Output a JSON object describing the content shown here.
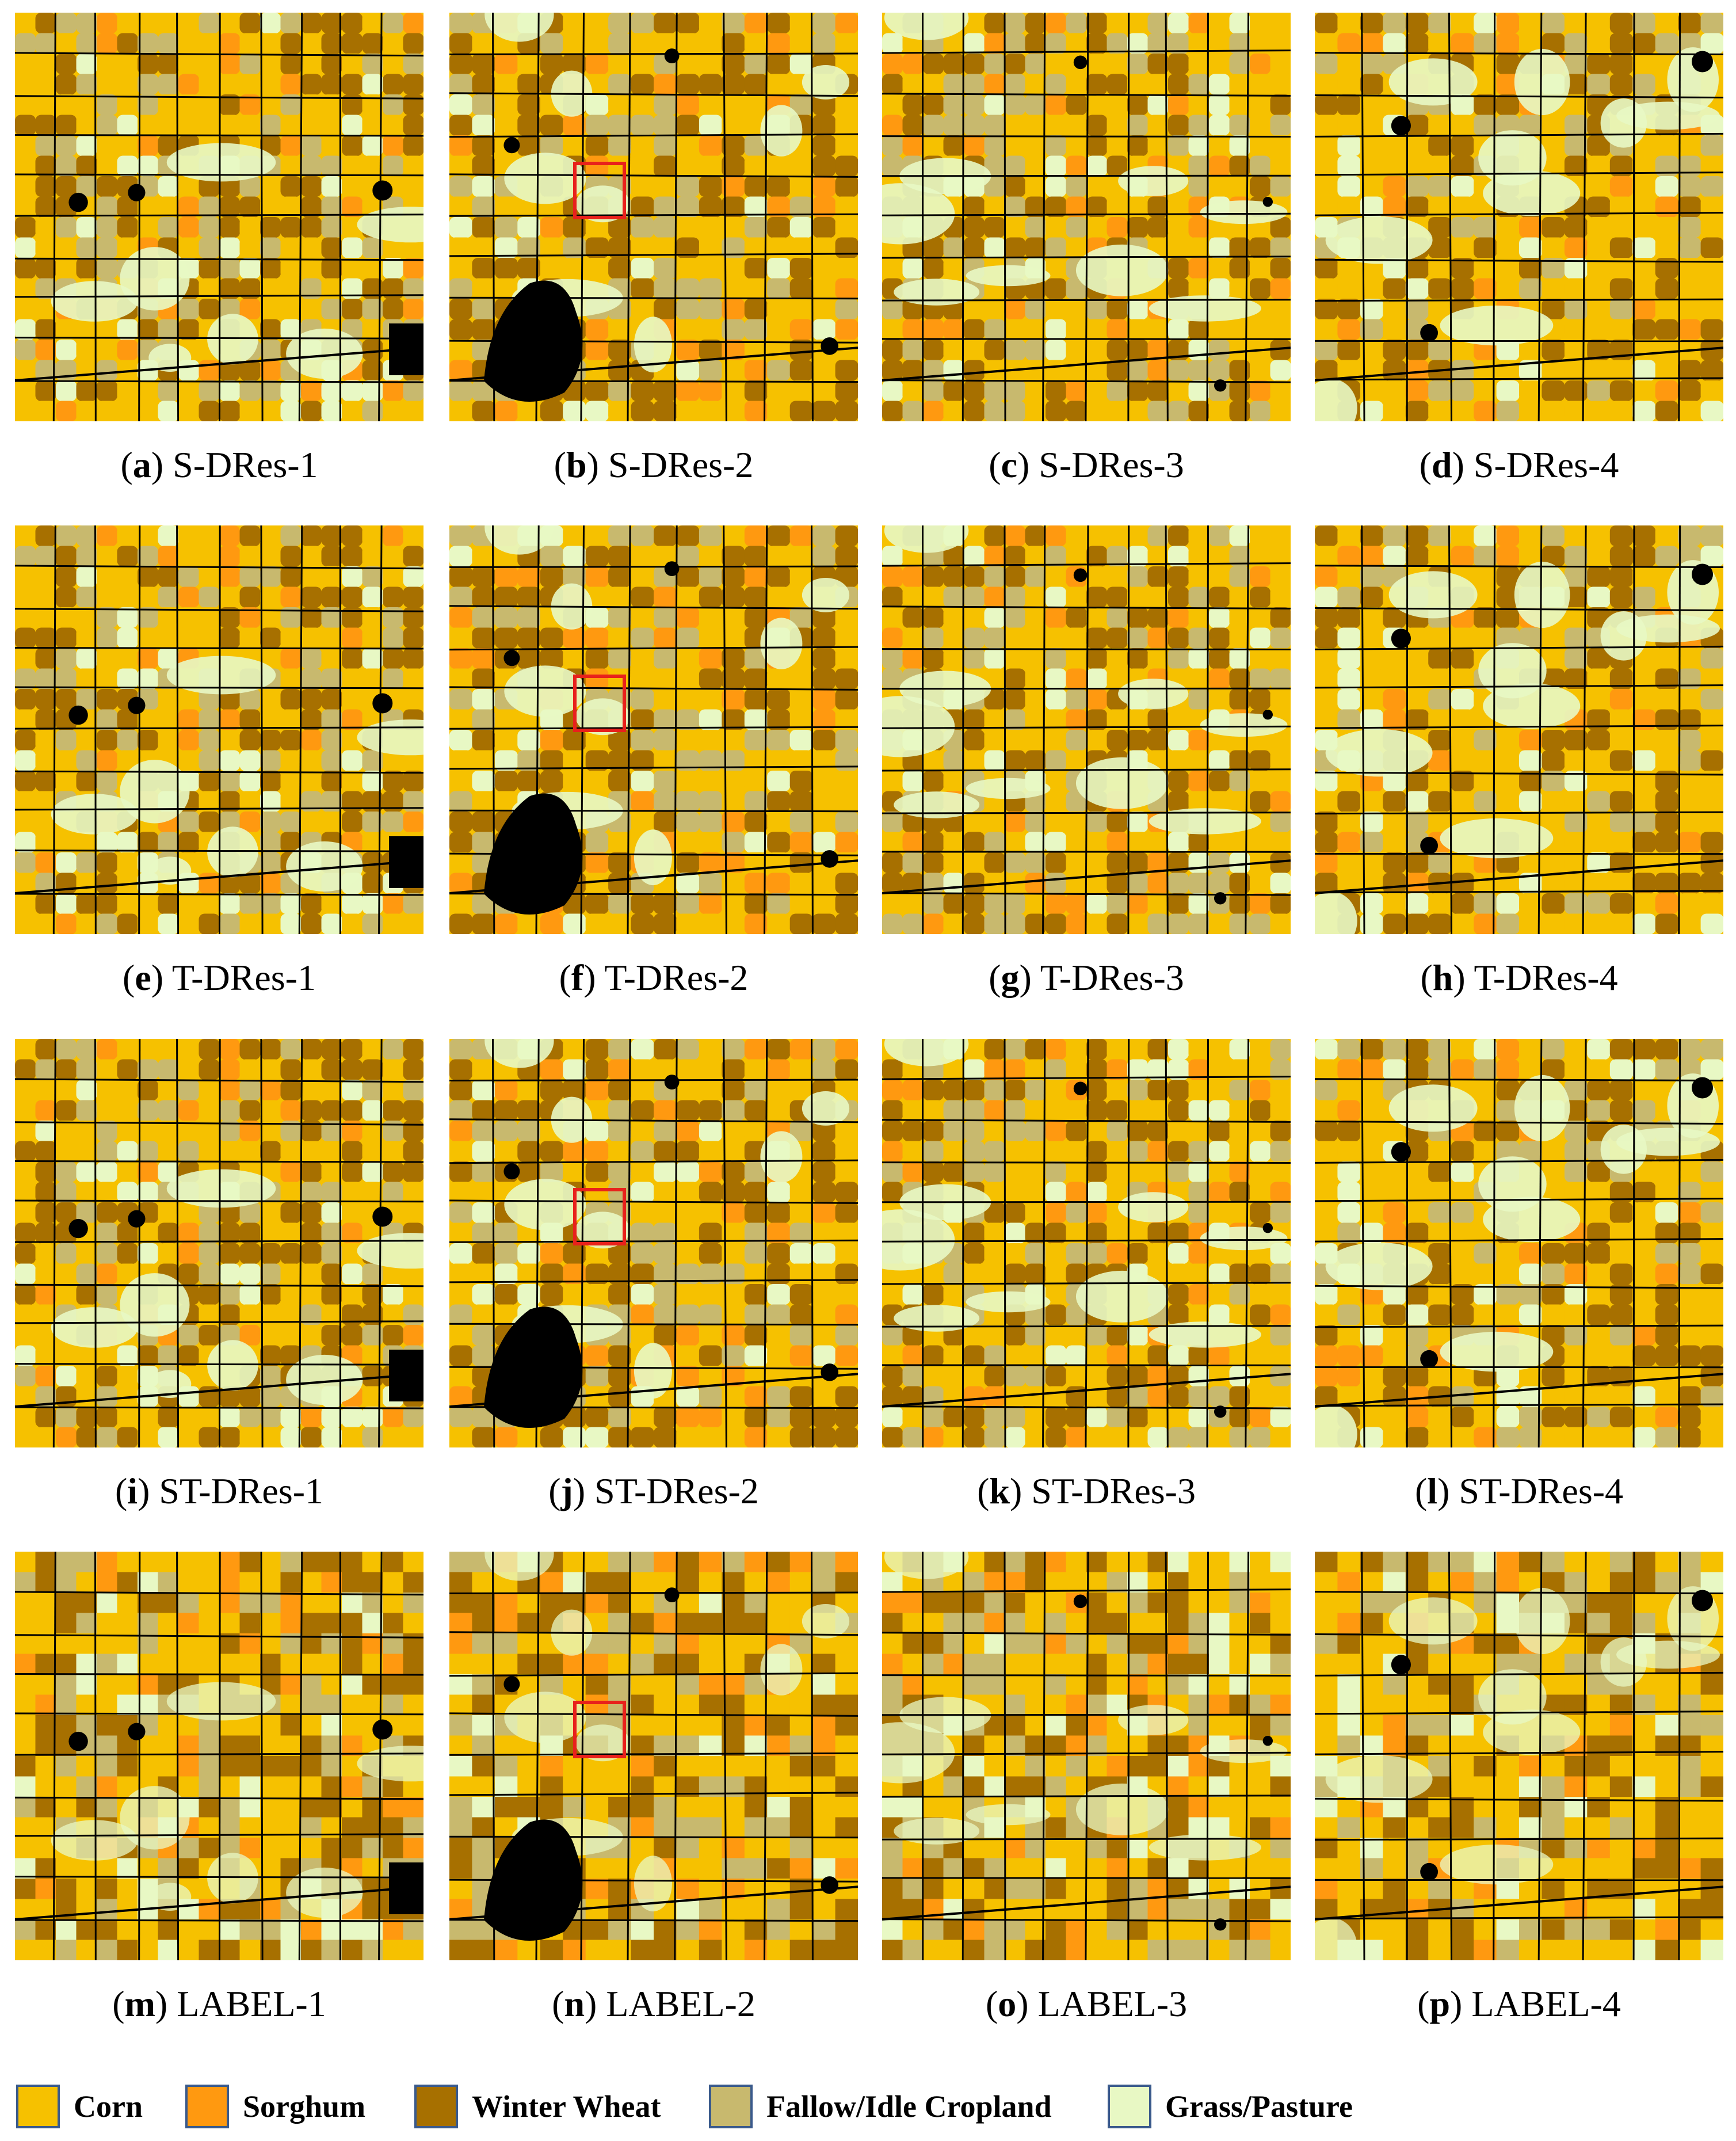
{
  "colors": {
    "corn": "#f6c100",
    "sorghum": "#ff9910",
    "winter_wheat": "#a77000",
    "fallow": "#c8b96e",
    "grass": "#e8f8c4",
    "road": "#000000",
    "highlight": "#e8211c"
  },
  "panels": [
    {
      "letter": "a",
      "name": "S-DRes-1",
      "region": 1,
      "highlight": false
    },
    {
      "letter": "b",
      "name": "S-DRes-2",
      "region": 2,
      "highlight": true
    },
    {
      "letter": "c",
      "name": "S-DRes-3",
      "region": 3,
      "highlight": false
    },
    {
      "letter": "d",
      "name": "S-DRes-4",
      "region": 4,
      "highlight": false
    },
    {
      "letter": "e",
      "name": "T-DRes-1",
      "region": 1,
      "highlight": false
    },
    {
      "letter": "f",
      "name": "T-DRes-2",
      "region": 2,
      "highlight": true
    },
    {
      "letter": "g",
      "name": "T-DRes-3",
      "region": 3,
      "highlight": false
    },
    {
      "letter": "h",
      "name": "T-DRes-4",
      "region": 4,
      "highlight": false
    },
    {
      "letter": "i",
      "name": "ST-DRes-1",
      "region": 1,
      "highlight": false
    },
    {
      "letter": "j",
      "name": "ST-DRes-2",
      "region": 2,
      "highlight": true
    },
    {
      "letter": "k",
      "name": "ST-DRes-3",
      "region": 3,
      "highlight": false
    },
    {
      "letter": "l",
      "name": "ST-DRes-4",
      "region": 4,
      "highlight": false
    },
    {
      "letter": "m",
      "name": "LABEL-1",
      "region": 1,
      "highlight": false
    },
    {
      "letter": "n",
      "name": "LABEL-2",
      "region": 2,
      "highlight": true
    },
    {
      "letter": "o",
      "name": "LABEL-3",
      "region": 3,
      "highlight": false
    },
    {
      "letter": "p",
      "name": "LABEL-4",
      "region": 4,
      "highlight": false
    }
  ],
  "legend": [
    {
      "label": "Corn",
      "class": "corn"
    },
    {
      "label": "Sorghum",
      "class": "sorghum"
    },
    {
      "label": "Winter Wheat",
      "class": "winter_wheat"
    },
    {
      "label": "Fallow/Idle Cropland",
      "class": "fallow"
    },
    {
      "label": "Grass/Pasture",
      "class": "grass"
    }
  ]
}
